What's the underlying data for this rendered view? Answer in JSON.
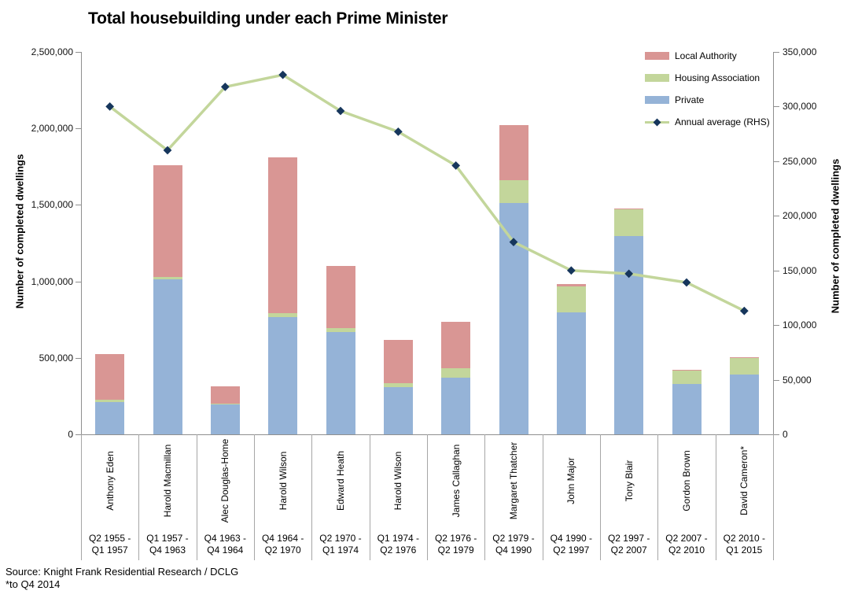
{
  "title": "Total housebuilding under each Prime Minister",
  "left_axis": {
    "title": "Number of completed dwellings",
    "ticks": [
      {
        "label": "0",
        "value": 0
      },
      {
        "label": "500,000",
        "value": 500000
      },
      {
        "label": "1,000,000",
        "value": 1000000
      },
      {
        "label": "1,500,000",
        "value": 1500000
      },
      {
        "label": "2,000,000",
        "value": 2000000
      },
      {
        "label": "2,500,000",
        "value": 2500000
      }
    ]
  },
  "right_axis": {
    "title": "Number of completed dwellings",
    "ticks": [
      {
        "label": "0",
        "value": 0
      },
      {
        "label": "50,000",
        "value": 50000
      },
      {
        "label": "100,000",
        "value": 100000
      },
      {
        "label": "150,000",
        "value": 150000
      },
      {
        "label": "200,000",
        "value": 200000
      },
      {
        "label": "250,000",
        "value": 250000
      },
      {
        "label": "300,000",
        "value": 300000
      },
      {
        "label": "350,000",
        "value": 350000
      }
    ]
  },
  "legend": [
    {
      "label": "Local Authority",
      "color": "#d99694",
      "type": "box"
    },
    {
      "label": "Housing Association",
      "color": "#c3d69b",
      "type": "box"
    },
    {
      "label": "Private",
      "color": "#95b3d7",
      "type": "box"
    },
    {
      "label": "Annual average (RHS)",
      "color": "#c3d69b",
      "marker_color": "#16365c",
      "type": "line"
    }
  ],
  "source": {
    "line1": "Source: Knight Frank Residential Research / DCLG",
    "line2": "*to Q4 2014"
  },
  "chart_data": {
    "type": "bar",
    "stacked": true,
    "line_overlay": true,
    "title": "Total housebuilding under each Prime Minister",
    "ylabel_left": "Number of completed dwellings",
    "ylabel_right": "Number of completed dwellings",
    "left_ylim": [
      0,
      2500000
    ],
    "right_ylim": [
      0,
      350000
    ],
    "grid": false,
    "legend_position": "top-right-inside",
    "categories": [
      "Anthony Eden",
      "Harold Macmillan",
      "Alec Douglas-Home",
      "Harold Wilson",
      "Edward Heath",
      "Harold Wilson",
      "James Callaghan",
      "Margaret Thatcher",
      "John Major",
      "Tony Blair",
      "Gordon Brown",
      "David Cameron*"
    ],
    "periods": [
      "Q2 1955 -\nQ1 1957",
      "Q1 1957 -\nQ4 1963",
      "Q4 1963 -\nQ4 1964",
      "Q4 1964 -\nQ2 1970",
      "Q2 1970 -\nQ1 1974",
      "Q1 1974 -\nQ2 1976",
      "Q2 1976 -\nQ2 1979",
      "Q2 1979 -\nQ4 1990",
      "Q4 1990 -\nQ2 1997",
      "Q2 1997 -\nQ2 2007",
      "Q2 2007 -\nQ2 2010",
      "Q2 2010 -\nQ1 2015"
    ],
    "series": [
      {
        "name": "Private",
        "color": "#95b3d7",
        "values": [
          210000,
          1015000,
          195000,
          765000,
          670000,
          310000,
          370000,
          1510000,
          795000,
          1295000,
          330000,
          390000
        ]
      },
      {
        "name": "Housing Association",
        "color": "#c3d69b",
        "values": [
          15000,
          15000,
          5000,
          25000,
          25000,
          25000,
          60000,
          150000,
          170000,
          175000,
          85000,
          110000
        ]
      },
      {
        "name": "Local Authority",
        "color": "#d99694",
        "values": [
          300000,
          730000,
          115000,
          1020000,
          405000,
          280000,
          305000,
          360000,
          15000,
          5000,
          5000,
          5000
        ]
      }
    ],
    "line_series": {
      "name": "Annual average (RHS)",
      "axis": "right",
      "color": "#c3d69b",
      "marker_color": "#16365c",
      "values": [
        300000,
        260000,
        318000,
        329000,
        296000,
        277000,
        246000,
        176000,
        150000,
        147000,
        139000,
        113000
      ]
    }
  }
}
